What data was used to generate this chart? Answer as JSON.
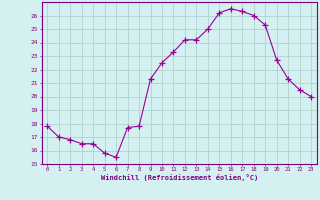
{
  "x": [
    0,
    1,
    2,
    3,
    4,
    5,
    6,
    7,
    8,
    9,
    10,
    11,
    12,
    13,
    14,
    15,
    16,
    17,
    18,
    19,
    20,
    21,
    22,
    23
  ],
  "y": [
    17.8,
    17.0,
    16.8,
    16.5,
    16.5,
    15.8,
    15.5,
    17.7,
    17.8,
    21.3,
    22.5,
    23.3,
    24.2,
    24.2,
    25.0,
    26.2,
    26.5,
    26.3,
    26.0,
    25.3,
    22.7,
    21.3,
    20.5,
    20.0
  ],
  "xlabel": "Windchill (Refroidissement éolien,°C)",
  "xlim": [
    -0.5,
    23.5
  ],
  "ylim": [
    15,
    27
  ],
  "yticks": [
    15,
    16,
    17,
    18,
    19,
    20,
    21,
    22,
    23,
    24,
    25,
    26
  ],
  "xticks": [
    0,
    1,
    2,
    3,
    4,
    5,
    6,
    7,
    8,
    9,
    10,
    11,
    12,
    13,
    14,
    15,
    16,
    17,
    18,
    19,
    20,
    21,
    22,
    23
  ],
  "line_color": "#990099",
  "marker_color": "#990099",
  "bg_color": "#d4f0f0",
  "grid_color": "#aacccc",
  "axis_color": "#800080",
  "tick_color": "#800080",
  "label_color": "#800080"
}
